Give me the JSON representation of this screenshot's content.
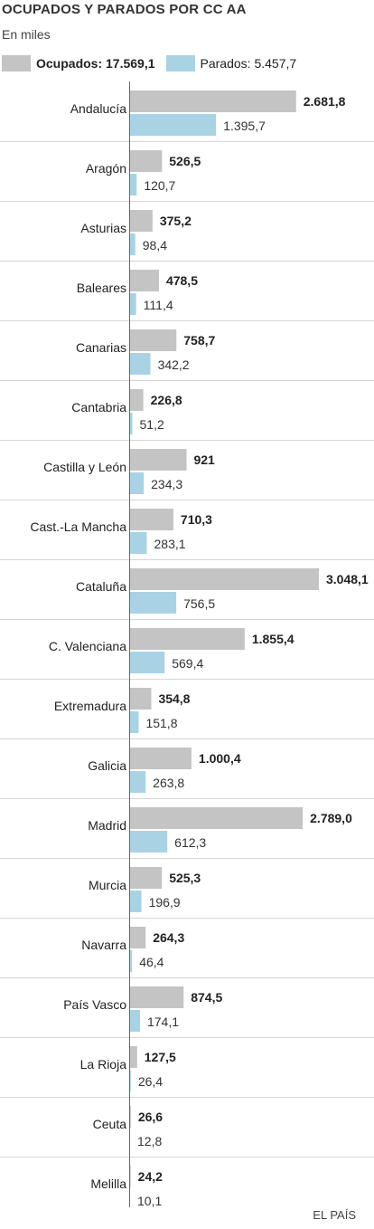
{
  "header": {
    "title": "OCUPADOS Y PARADOS POR CC AA",
    "subtitle": "En miles"
  },
  "legend": {
    "ocupados_label": "Ocupados: 17.569,1",
    "parados_label": "Parados: 5.457,7"
  },
  "colors": {
    "ocupados": "#c4c4c4",
    "parados": "#a9d3e4",
    "separator": "#d6d6d6",
    "axis": "#666666"
  },
  "credit": "EL PAÍS",
  "chart_data": {
    "type": "bar",
    "orientation": "horizontal",
    "categories": [
      "Andalucía",
      "Aragón",
      "Asturias",
      "Baleares",
      "Canarias",
      "Cantabria",
      "Castilla y León",
      "Cast.-La Mancha",
      "Cataluña",
      "C. Valenciana",
      "Extremadura",
      "Galicia",
      "Madrid",
      "Murcia",
      "Navarra",
      "País Vasco",
      "La Rioja",
      "Ceuta",
      "Melilla"
    ],
    "series": [
      {
        "name": "Ocupados",
        "values": [
          2681.8,
          526.5,
          375.2,
          478.5,
          758.7,
          226.8,
          921,
          710.3,
          3048.1,
          1855.4,
          354.8,
          1000.4,
          2789.0,
          525.3,
          264.3,
          874.5,
          127.5,
          26.6,
          24.2
        ],
        "labels": [
          "2.681,8",
          "526,5",
          "375,2",
          "478,5",
          "758,7",
          "226,8",
          "921",
          "710,3",
          "3.048,1",
          "1.855,4",
          "354,8",
          "1.000,4",
          "2.789,0",
          "525,3",
          "264,3",
          "874,5",
          "127,5",
          "26,6",
          "24,2"
        ]
      },
      {
        "name": "Parados",
        "values": [
          1395.7,
          120.7,
          98.4,
          111.4,
          342.2,
          51.2,
          234.3,
          283.1,
          756.5,
          569.4,
          151.8,
          263.8,
          612.3,
          196.9,
          46.4,
          174.1,
          26.4,
          12.8,
          10.1
        ],
        "labels": [
          "1.395,7",
          "120,7",
          "98,4",
          "111,4",
          "342,2",
          "51,2",
          "234,3",
          "283,1",
          "756,5",
          "569,4",
          "151,8",
          "263,8",
          "612,3",
          "196,9",
          "46,4",
          "174,1",
          "26,4",
          "12,8",
          "10,1"
        ]
      }
    ],
    "xlim": [
      0,
      3048.1
    ]
  }
}
